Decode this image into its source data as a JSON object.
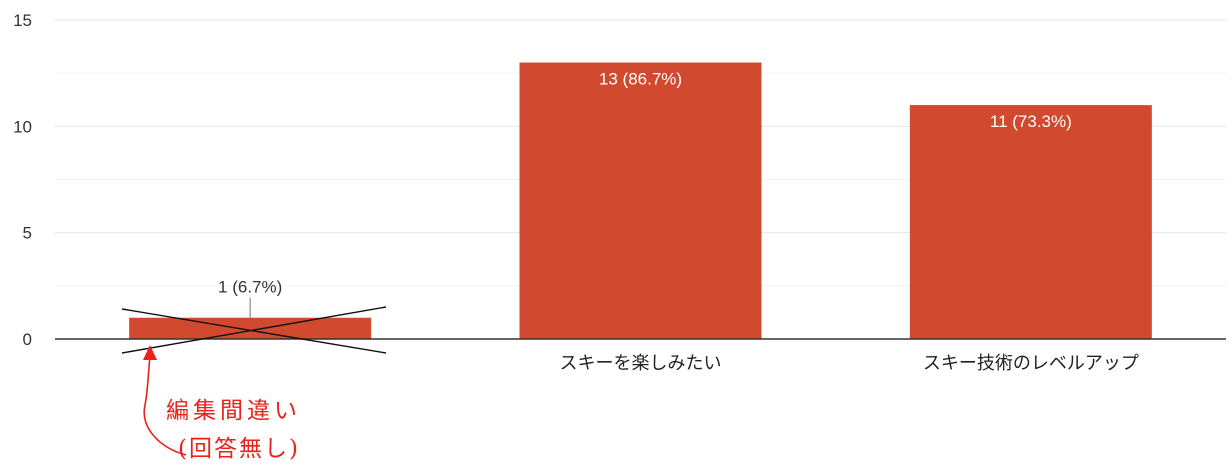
{
  "chart_data": {
    "type": "bar",
    "categories": [
      "",
      "スキーを楽しみたい",
      "スキー技術のレベルアップ"
    ],
    "values": [
      1,
      13,
      11
    ],
    "data_labels": [
      "1 (6.7%)",
      "13 (86.7%)",
      "11 (73.3%)"
    ],
    "ylim": [
      0,
      15
    ],
    "yticks": [
      "0",
      "5",
      "10",
      "15"
    ],
    "grid": true,
    "bar_color": "#d14a2f",
    "crossed_out_categories": [
      0
    ]
  },
  "annotation": {
    "line1": "編集間違い",
    "line2": "(回答無し)",
    "color": "#e8221c"
  }
}
